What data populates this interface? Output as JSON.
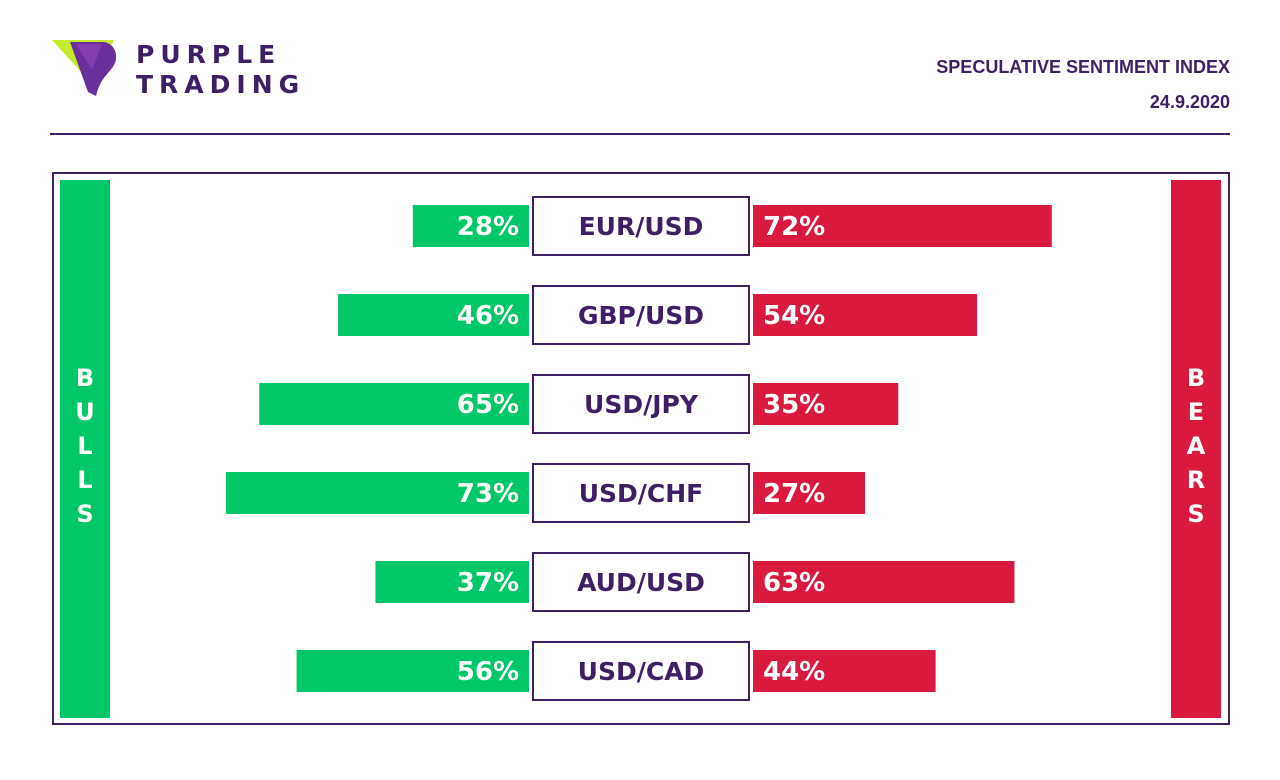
{
  "brand": {
    "line1": "PURPLE",
    "line2": "TRADING",
    "logo_icon": "purple-trading-logo-icon",
    "colors": {
      "primary": "#3e1f66",
      "accent_green": "#c6ea2c"
    }
  },
  "header": {
    "title": "SPECULATIVE SENTIMENT INDEX",
    "date": "24.9.2020"
  },
  "labels": {
    "bulls": "BULLS",
    "bears": "BEARS"
  },
  "colors": {
    "bulls": "#00c767",
    "bears": "#d9193e",
    "text": "#3e1f66"
  },
  "chart_data": {
    "type": "bar",
    "orientation": "diverging-horizontal",
    "categories": [
      "EUR/USD",
      "GBP/USD",
      "USD/JPY",
      "USD/CHF",
      "AUD/USD",
      "USD/CAD"
    ],
    "series": [
      {
        "name": "BULLS",
        "values": [
          28,
          46,
          65,
          73,
          37,
          56
        ],
        "labels": [
          "28%",
          "46%",
          "65%",
          "73%",
          "37%",
          "56%"
        ]
      },
      {
        "name": "BEARS",
        "values": [
          72,
          54,
          35,
          27,
          63,
          44
        ],
        "labels": [
          "72%",
          "54%",
          "35%",
          "27%",
          "63%",
          "44%"
        ]
      }
    ],
    "unit": "%"
  }
}
